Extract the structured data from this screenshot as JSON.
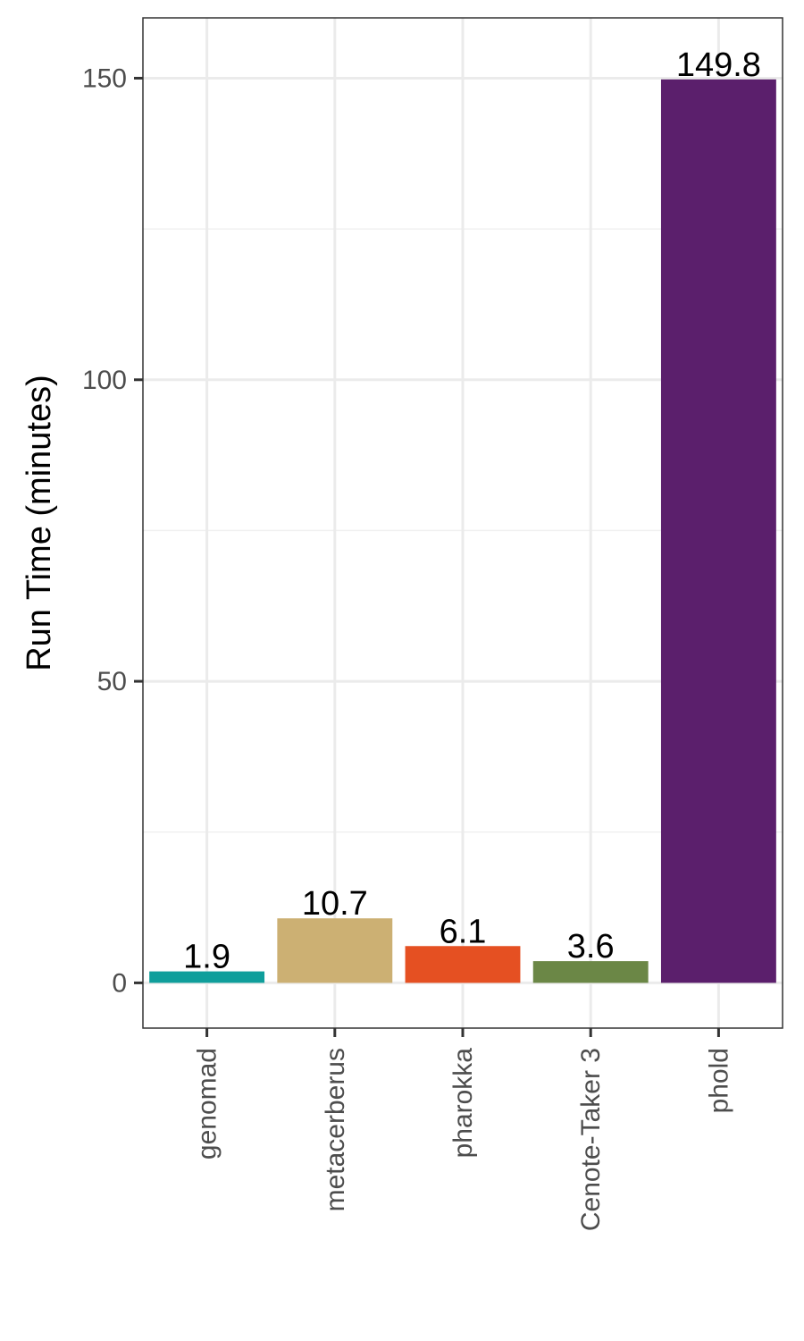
{
  "chart_data": {
    "type": "bar",
    "categories": [
      "genomad",
      "metacerberus",
      "pharokka",
      "Cenote-Taker 3",
      "phold"
    ],
    "values": [
      1.9,
      10.7,
      6.1,
      3.6,
      149.8
    ],
    "value_labels": [
      "1.9",
      "10.7",
      "6.1",
      "3.6",
      "149.8"
    ],
    "colors": [
      "#0f9e9b",
      "#ccb073",
      "#e55022",
      "#6b8746",
      "#5b1f6c"
    ],
    "xlabel": "",
    "ylabel": "Run Time (minutes)",
    "ylim": [
      -7.5,
      160
    ],
    "yticks": [
      0,
      50,
      100,
      150
    ],
    "ytick_labels": [
      "0",
      "50",
      "100",
      "150"
    ],
    "grid": true,
    "x_tick_label_rotation": "vertical",
    "legend": "none"
  }
}
